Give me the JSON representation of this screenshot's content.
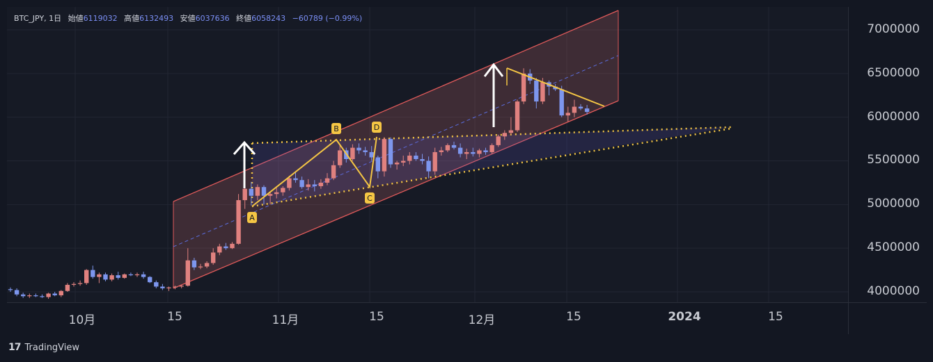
{
  "legend": {
    "symbol": "BTC_JPY, 1日",
    "open_label": "始値",
    "open": "6119032",
    "high_label": "高値",
    "high": "6132493",
    "low_label": "安値",
    "low": "6037636",
    "close_label": "終値",
    "close": "6058243",
    "change": "−60789 (−0.99%)"
  },
  "footer": {
    "brand_mark": "17",
    "brand": "TradingView"
  },
  "colors": {
    "up": "#e0817f",
    "down": "#7d96ee",
    "channel": "#e05a5a",
    "pattern": "#f5c644",
    "arrow": "#ffffff"
  },
  "chart_data": {
    "type": "candlestick",
    "symbol": "BTC_JPY",
    "interval": "1日",
    "price_ticks": [
      "7000000",
      "6500000",
      "6000000",
      "5500000",
      "5000000",
      "4500000",
      "4000000"
    ],
    "time_ticks": [
      "10月",
      "15",
      "11月",
      "15",
      "12月",
      "15",
      "2024",
      "15"
    ],
    "ylim": [
      3900000,
      7200000
    ],
    "grid": true,
    "candles": [
      [
        4030000,
        4050000,
        4000000,
        4020000
      ],
      [
        4020000,
        4040000,
        3950000,
        3970000
      ],
      [
        3970000,
        3990000,
        3930000,
        3950000
      ],
      [
        3950000,
        3980000,
        3930000,
        3960000
      ],
      [
        3960000,
        3980000,
        3940000,
        3950000
      ],
      [
        3950000,
        3970000,
        3930000,
        3940000
      ],
      [
        3940000,
        3990000,
        3920000,
        3980000
      ],
      [
        3980000,
        4000000,
        3950000,
        3960000
      ],
      [
        3960000,
        4020000,
        3940000,
        4010000
      ],
      [
        4010000,
        4100000,
        4000000,
        4080000
      ],
      [
        4080000,
        4110000,
        4060000,
        4090000
      ],
      [
        4090000,
        4130000,
        4070000,
        4100000
      ],
      [
        4100000,
        4260000,
        4080000,
        4250000
      ],
      [
        4250000,
        4300000,
        4150000,
        4170000
      ],
      [
        4170000,
        4220000,
        4100000,
        4200000
      ],
      [
        4200000,
        4220000,
        4120000,
        4140000
      ],
      [
        4140000,
        4210000,
        4120000,
        4190000
      ],
      [
        4190000,
        4230000,
        4140000,
        4160000
      ],
      [
        4160000,
        4210000,
        4150000,
        4200000
      ],
      [
        4200000,
        4220000,
        4180000,
        4190000
      ],
      [
        4190000,
        4220000,
        4170000,
        4200000
      ],
      [
        4200000,
        4230000,
        4150000,
        4170000
      ],
      [
        4170000,
        4180000,
        4100000,
        4110000
      ],
      [
        4110000,
        4130000,
        4040000,
        4060000
      ],
      [
        4060000,
        4090000,
        4020000,
        4040000
      ],
      [
        4040000,
        4060000,
        4010000,
        4050000
      ],
      [
        4050000,
        4070000,
        4030000,
        4060000
      ],
      [
        4060000,
        4080000,
        4040000,
        4070000
      ],
      [
        4070000,
        4500000,
        4060000,
        4360000
      ],
      [
        4360000,
        4390000,
        4250000,
        4280000
      ],
      [
        4280000,
        4320000,
        4260000,
        4290000
      ],
      [
        4290000,
        4350000,
        4270000,
        4330000
      ],
      [
        4330000,
        4500000,
        4310000,
        4450000
      ],
      [
        4450000,
        4550000,
        4420000,
        4520000
      ],
      [
        4520000,
        4560000,
        4480000,
        4500000
      ],
      [
        4500000,
        4570000,
        4490000,
        4550000
      ],
      [
        4550000,
        5120000,
        4540000,
        5050000
      ],
      [
        5050000,
        5250000,
        4950000,
        5180000
      ],
      [
        5180000,
        5260000,
        4990000,
        5100000
      ],
      [
        5100000,
        5230000,
        5050000,
        5200000
      ],
      [
        5200000,
        5220000,
        5000000,
        5100000
      ],
      [
        5100000,
        5150000,
        5000000,
        5120000
      ],
      [
        5120000,
        5190000,
        5070000,
        5140000
      ],
      [
        5140000,
        5210000,
        5100000,
        5190000
      ],
      [
        5190000,
        5330000,
        5160000,
        5300000
      ],
      [
        5300000,
        5380000,
        5250000,
        5280000
      ],
      [
        5280000,
        5320000,
        5180000,
        5200000
      ],
      [
        5200000,
        5290000,
        5160000,
        5230000
      ],
      [
        5230000,
        5280000,
        5150000,
        5210000
      ],
      [
        5210000,
        5290000,
        5180000,
        5250000
      ],
      [
        5250000,
        5360000,
        5220000,
        5300000
      ],
      [
        5300000,
        5500000,
        5280000,
        5450000
      ],
      [
        5450000,
        5680000,
        5420000,
        5620000
      ],
      [
        5620000,
        5650000,
        5480000,
        5520000
      ],
      [
        5520000,
        5690000,
        5500000,
        5650000
      ],
      [
        5650000,
        5700000,
        5580000,
        5620000
      ],
      [
        5620000,
        5660000,
        5560000,
        5600000
      ],
      [
        5600000,
        5670000,
        5500000,
        5540000
      ],
      [
        5540000,
        5560000,
        5300000,
        5380000
      ],
      [
        5380000,
        5770000,
        5320000,
        5750000
      ],
      [
        5750000,
        5770000,
        5420000,
        5460000
      ],
      [
        5460000,
        5500000,
        5400000,
        5480000
      ],
      [
        5480000,
        5560000,
        5440000,
        5500000
      ],
      [
        5500000,
        5600000,
        5460000,
        5560000
      ],
      [
        5560000,
        5600000,
        5500000,
        5520000
      ],
      [
        5520000,
        5580000,
        5460000,
        5500000
      ],
      [
        5500000,
        5550000,
        5300000,
        5380000
      ],
      [
        5380000,
        5650000,
        5340000,
        5600000
      ],
      [
        5600000,
        5660000,
        5560000,
        5620000
      ],
      [
        5620000,
        5700000,
        5600000,
        5680000
      ],
      [
        5680000,
        5720000,
        5630000,
        5650000
      ],
      [
        5650000,
        5700000,
        5540000,
        5580000
      ],
      [
        5580000,
        5640000,
        5520000,
        5600000
      ],
      [
        5600000,
        5650000,
        5550000,
        5580000
      ],
      [
        5580000,
        5640000,
        5540000,
        5620000
      ],
      [
        5620000,
        5650000,
        5570000,
        5600000
      ],
      [
        5600000,
        5700000,
        5580000,
        5680000
      ],
      [
        5680000,
        5800000,
        5660000,
        5780000
      ],
      [
        5780000,
        5850000,
        5740000,
        5820000
      ],
      [
        5820000,
        6000000,
        5800000,
        5850000
      ],
      [
        5850000,
        6200000,
        5830000,
        6180000
      ],
      [
        6180000,
        6560000,
        6150000,
        6500000
      ],
      [
        6500000,
        6550000,
        6380000,
        6420000
      ],
      [
        6420000,
        6450000,
        6100000,
        6180000
      ],
      [
        6180000,
        6450000,
        6150000,
        6400000
      ],
      [
        6400000,
        6420000,
        6250000,
        6350000
      ],
      [
        6350000,
        6380000,
        6300000,
        6320000
      ],
      [
        6320000,
        6360000,
        6000000,
        6020000
      ],
      [
        6020000,
        6120000,
        5950000,
        6050000
      ],
      [
        6050000,
        6200000,
        6000000,
        6120000
      ],
      [
        6120000,
        6150000,
        6080000,
        6100000
      ],
      [
        6100000,
        6140000,
        6030000,
        6060000
      ]
    ],
    "patterns": {
      "channel": "parallel channel",
      "abcd_points": [
        "A",
        "B",
        "C",
        "D"
      ],
      "triangle": "symmetric triangle"
    }
  }
}
